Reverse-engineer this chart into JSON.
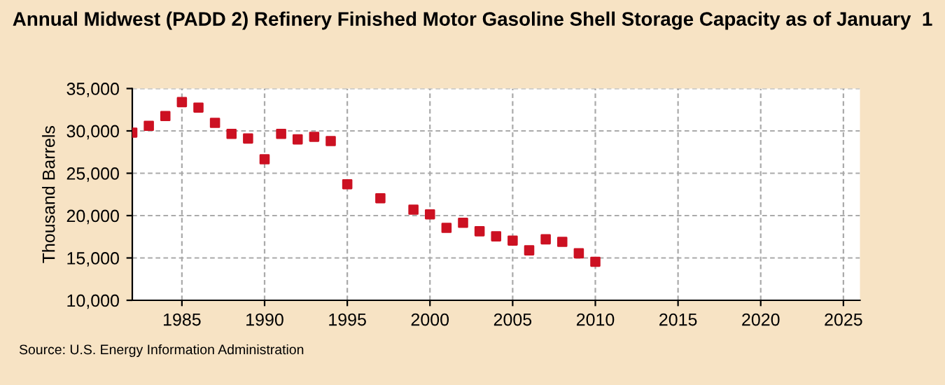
{
  "chart_data": {
    "type": "scatter",
    "title": "Annual Midwest (PADD 2) Refinery Finished Motor Gasoline Shell Storage Capacity as of January  1",
    "ylabel": "Thousand Barrels",
    "x": [
      1982,
      1983,
      1984,
      1985,
      1986,
      1987,
      1988,
      1989,
      1990,
      1991,
      1992,
      1993,
      1994,
      1995,
      1997,
      1999,
      2000,
      2001,
      2002,
      2003,
      2004,
      2005,
      2006,
      2007,
      2008,
      2009,
      2010
    ],
    "series": [
      {
        "color": "#cc1122",
        "values": [
          29800,
          30600,
          31750,
          33400,
          32750,
          30950,
          29650,
          29100,
          26650,
          29650,
          29000,
          29300,
          28800,
          23700,
          22050,
          20700,
          20150,
          18550,
          19150,
          18150,
          17550,
          17050,
          15900,
          17200,
          16900,
          15550,
          14550
        ]
      }
    ],
    "xlim": [
      1982,
      2026
    ],
    "xticks": [
      1985,
      1990,
      1995,
      2000,
      2005,
      2010,
      2015,
      2020,
      2025
    ],
    "ylim": [
      10000,
      35000
    ],
    "yticks": [
      {
        "value": 10000,
        "label": "10,000"
      },
      {
        "value": 15000,
        "label": "15,000"
      },
      {
        "value": 20000,
        "label": "20,000"
      },
      {
        "value": 25000,
        "label": "25,000"
      },
      {
        "value": 30000,
        "label": "30,000"
      },
      {
        "value": 35000,
        "label": "35,000"
      }
    ],
    "grid": true,
    "marker": "square",
    "annotations": [
      "Source: U.S. Energy Information Administration"
    ]
  }
}
